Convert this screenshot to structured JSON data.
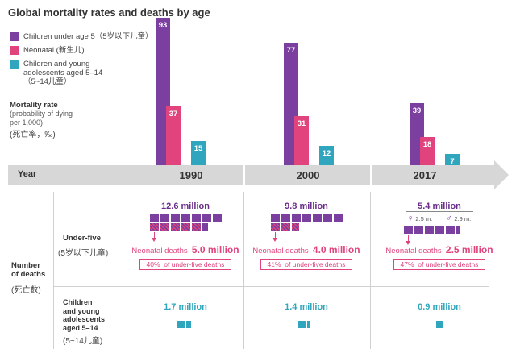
{
  "title": "Global mortality rates and deaths by age",
  "legend": [
    {
      "label_lines": [
        "Children under age 5（5岁以下儿童）"
      ],
      "color": "#7b3fa0"
    },
    {
      "label_lines": [
        "Neonatal (新生儿)"
      ],
      "color": "#e1437d"
    },
    {
      "label_lines": [
        "Children and young",
        "adolescents aged 5–14",
        "（5~14儿童）"
      ],
      "color": "#2fa6bd"
    }
  ],
  "mortality_label": {
    "title": "Mortality rate",
    "sub1": "(probability of dying",
    "sub2": "per 1,000)",
    "cn": "(死亡率，‰)"
  },
  "axis": {
    "year_label": "Year"
  },
  "chart_data": {
    "type": "bar",
    "title": "Global mortality rates and deaths by age",
    "ylabel": "Mortality rate (probability of dying per 1,000)",
    "xlabel": "Year",
    "categories": [
      "1990",
      "2000",
      "2017"
    ],
    "ylim": [
      0,
      93
    ],
    "series": [
      {
        "name": "Children under age 5（5岁以下儿童）",
        "color": "#7b3fa0",
        "values": [
          93,
          77,
          39
        ]
      },
      {
        "name": "Neonatal (新生儿)",
        "color": "#e1437d",
        "values": [
          37,
          31,
          18
        ]
      },
      {
        "name": "Children and young adolescents aged 5–14（5~14儿童）",
        "color": "#2fa6bd",
        "values": [
          15,
          12,
          7
        ]
      }
    ]
  },
  "deaths": {
    "row_label": {
      "line1": "Number",
      "line2": "of deaths",
      "cn": "(死亡数)"
    },
    "under_five_label": {
      "line1": "Under-five",
      "cn": "(5岁以下儿童)"
    },
    "adolescent_label": {
      "line1": "Children",
      "line2": "and young",
      "line3": "adolescents",
      "line4": "aged 5–14",
      "cn": "(5~14儿童)"
    },
    "neonatal_prefix": "Neonatal deaths",
    "pct_suffix": "of under-five deaths",
    "years": [
      {
        "year": "1990",
        "under_five_total": "12.6 million",
        "under_five_blocks": 12.6,
        "neonatal_total": "5.0 million",
        "neonatal_blocks": 5.0,
        "neonatal_pct": "40%",
        "adolescent_total": "1.7 million",
        "adolescent_blocks": 1.7
      },
      {
        "year": "2000",
        "under_five_total": "9.8 million",
        "under_five_blocks": 9.8,
        "neonatal_total": "4.0 million",
        "neonatal_blocks": 4.0,
        "neonatal_pct": "41%",
        "adolescent_total": "1.4 million",
        "adolescent_blocks": 1.4
      },
      {
        "year": "2017",
        "under_five_total": "5.4 million",
        "under_five_blocks": 5.4,
        "neonatal_total": "2.5 million",
        "neonatal_blocks": 2.5,
        "neonatal_pct": "47%",
        "adolescent_total": "0.9 million",
        "adolescent_blocks": 0.9,
        "female": "2.5 m.",
        "male": "2.9 m."
      }
    ]
  }
}
